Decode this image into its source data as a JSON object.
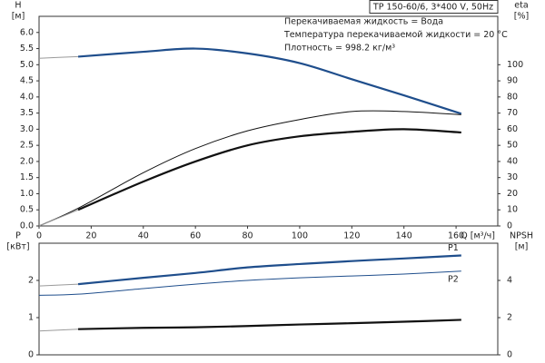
{
  "chart_data": [
    {
      "type": "line",
      "title": "TP 150-60/6, 3*400 V, 50Hz",
      "annotations": [
        "Перекачиваемая жидкость = Вода",
        "Температура перекачиваемой жидкости = 20 °C",
        "Плотность = 998.2 кг/м³"
      ],
      "ylabel": "H",
      "yunit": "[м]",
      "y2label": "eta",
      "y2unit": "[%]",
      "xlabel": "Q [м³/ч]",
      "x": [
        0,
        15,
        40,
        60,
        80,
        100,
        120,
        140,
        162
      ],
      "xlim": [
        0,
        176
      ],
      "xticks": [
        0,
        20,
        40,
        60,
        80,
        100,
        120,
        140,
        160
      ],
      "ylim": [
        0,
        6.5
      ],
      "yticks": [
        {
          "value": 0,
          "label": "0.0"
        },
        0.5,
        {
          "value": 1,
          "label": "1.0"
        },
        1.5,
        {
          "value": 2,
          "label": "2.0"
        },
        2.5,
        {
          "value": 3,
          "label": "3.0"
        },
        3.5,
        {
          "value": 4,
          "label": "4.0"
        },
        4.5,
        {
          "value": 5,
          "label": "5.0"
        },
        5.5,
        {
          "value": 6,
          "label": "6.0"
        }
      ],
      "y2lim": [
        0,
        130
      ],
      "y2ticks": [
        0,
        10,
        20,
        30,
        40,
        50,
        60,
        70,
        80,
        90,
        100
      ],
      "grid": false,
      "series": [
        {
          "color": "#9a9a9a",
          "line_width": 1,
          "values": [
            5.2,
            5.25,
            null,
            null,
            null,
            null,
            null,
            null,
            null
          ]
        },
        {
          "color": "#1f4e8c",
          "line_width": 2.2,
          "values": [
            null,
            5.25,
            5.4,
            5.5,
            5.35,
            5.05,
            4.55,
            4.05,
            3.48
          ]
        },
        {
          "color": "#111111",
          "line_width": 1,
          "axis": "y2",
          "values": [
            0,
            11,
            33,
            48,
            59,
            66,
            71,
            71,
            69
          ]
        },
        {
          "color": "#9a9a9a",
          "line_width": 1,
          "axis": "y2",
          "values": [
            0,
            10,
            null,
            null,
            null,
            null,
            null,
            null,
            null
          ]
        },
        {
          "color": "#111111",
          "line_width": 2.2,
          "axis": "y2",
          "values": [
            null,
            10,
            27.5,
            40,
            50,
            55.6,
            58.4,
            60,
            58
          ]
        }
      ]
    },
    {
      "type": "line",
      "ylabel": "P",
      "yunit": "[кВт]",
      "y2label": "NPSH",
      "y2unit": "[м]",
      "x": [
        0,
        15,
        40,
        60,
        80,
        100,
        120,
        140,
        162
      ],
      "xlim": [
        0,
        176
      ],
      "ylim": [
        0,
        3
      ],
      "yticks": [
        0,
        1,
        2
      ],
      "y2lim": [
        0,
        6
      ],
      "y2ticks": [
        0,
        2,
        4
      ],
      "grid": false,
      "series": [
        {
          "color": "#9a9a9a",
          "line_width": 1,
          "values": [
            1.85,
            1.9,
            null,
            null,
            null,
            null,
            null,
            null,
            null
          ]
        },
        {
          "name": "P1",
          "color": "#1f4e8c",
          "line_width": 2.2,
          "values": [
            null,
            1.9,
            2.07,
            2.2,
            2.35,
            2.44,
            2.52,
            2.59,
            2.67
          ]
        },
        {
          "name": "P2",
          "color": "#1f4e8c",
          "line_width": 1,
          "values": [
            1.6,
            1.63,
            1.78,
            1.9,
            2.0,
            2.07,
            2.12,
            2.17,
            2.25
          ]
        },
        {
          "color": "#9a9a9a",
          "line_width": 1,
          "axis": "y2",
          "values": [
            1.28,
            1.38,
            null,
            null,
            null,
            null,
            null,
            null,
            null
          ]
        },
        {
          "color": "#111111",
          "line_width": 2.2,
          "axis": "y2",
          "values": [
            null,
            1.38,
            1.45,
            1.48,
            1.55,
            1.63,
            1.7,
            1.78,
            1.88
          ]
        }
      ]
    }
  ]
}
